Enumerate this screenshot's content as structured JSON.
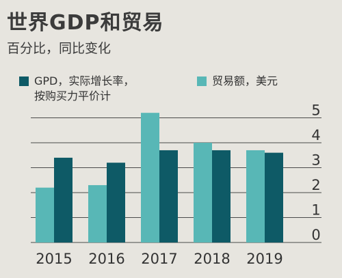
{
  "title": "世界GDP和贸易",
  "subtitle": "百分比，同比变化",
  "colors": {
    "gdp": "#0e5a66",
    "trade": "#58b7b6",
    "grid": "#4a4a4a",
    "background": "#e7e5df"
  },
  "legend": [
    {
      "label": "GPD，实际增长率，\n按购买力平价计",
      "series": "gdp"
    },
    {
      "label": "贸易额，美元",
      "series": "trade"
    }
  ],
  "chart_data": {
    "type": "bar",
    "categories": [
      "2015",
      "2016",
      "2017",
      "2018",
      "2019"
    ],
    "series": [
      {
        "name": "贸易额，美元",
        "key": "trade",
        "values": [
          2.2,
          2.3,
          5.2,
          4.0,
          3.7
        ]
      },
      {
        "name": "GPD，实际增长率，按购买力平价计",
        "key": "gdp",
        "values": [
          3.4,
          3.2,
          3.7,
          3.7,
          3.6
        ]
      }
    ],
    "yticks": [
      0,
      1,
      2,
      3,
      4,
      5
    ],
    "ylim": [
      0,
      5
    ],
    "axis_side": "right",
    "grid": true
  }
}
